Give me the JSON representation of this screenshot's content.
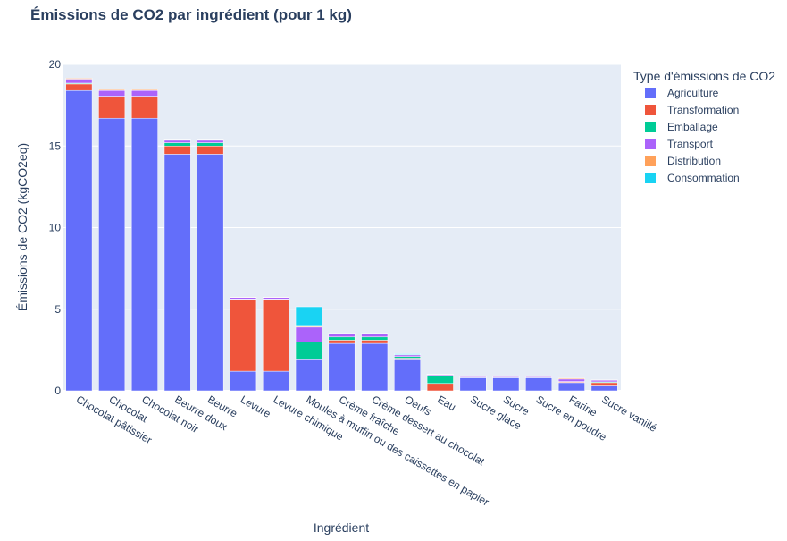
{
  "chart_data": {
    "type": "bar",
    "stacked": true,
    "title": "Émissions de CO2 par ingrédient (pour 1 kg)",
    "xlabel": "Ingrédient",
    "ylabel": "Émissions de CO2 (kgCO2eq)",
    "ylim": [
      0,
      20
    ],
    "yticks": [
      0,
      5,
      10,
      15,
      20
    ],
    "grid": true,
    "legend_title": "Type d'émissions de CO2",
    "legend_position": "right",
    "categories": [
      "Chocolat pâtissier",
      "Chocolat",
      "Chocolat noir",
      "Beurre doux",
      "Beurre",
      "Levure",
      "Levure chimique",
      "Moules à muffin ou des caissettes en papier",
      "Crème fraîche",
      "Crème dessert au chocolat",
      "Oeufs",
      "Eau",
      "Sucre glace",
      "Sucre",
      "Sucre en poudre",
      "Farine",
      "Sucre vanillé"
    ],
    "series": [
      {
        "name": "Agriculture",
        "color": "#636efa",
        "values": [
          18.4,
          16.7,
          16.7,
          14.5,
          14.5,
          1.2,
          1.2,
          1.9,
          2.9,
          2.9,
          1.9,
          0.0,
          0.8,
          0.8,
          0.8,
          0.5,
          0.3
        ]
      },
      {
        "name": "Transformation",
        "color": "#ef553b",
        "values": [
          0.4,
          1.3,
          1.3,
          0.5,
          0.5,
          4.4,
          4.4,
          0.0,
          0.2,
          0.2,
          0.1,
          0.45,
          0.0,
          0.0,
          0.0,
          0.05,
          0.2
        ]
      },
      {
        "name": "Emballage",
        "color": "#00cc96",
        "values": [
          0.05,
          0.05,
          0.05,
          0.2,
          0.2,
          0.02,
          0.02,
          1.1,
          0.2,
          0.2,
          0.1,
          0.5,
          0.02,
          0.02,
          0.02,
          0.02,
          0.05
        ]
      },
      {
        "name": "Transport",
        "color": "#ab63fa",
        "values": [
          0.25,
          0.35,
          0.35,
          0.15,
          0.15,
          0.1,
          0.1,
          0.9,
          0.2,
          0.2,
          0.1,
          0.05,
          0.05,
          0.05,
          0.05,
          0.15,
          0.1
        ]
      },
      {
        "name": "Distribution",
        "color": "#ffa15a",
        "values": [
          0.05,
          0.05,
          0.05,
          0.02,
          0.02,
          0.02,
          0.02,
          0.05,
          0.02,
          0.02,
          0.02,
          0.02,
          0.05,
          0.05,
          0.05,
          0.05,
          0.02
        ]
      },
      {
        "name": "Consommation",
        "color": "#19d3f3",
        "values": [
          0.0,
          0.0,
          0.0,
          0.0,
          0.0,
          0.0,
          0.0,
          1.2,
          0.0,
          0.0,
          0.05,
          0.0,
          0.0,
          0.0,
          0.0,
          0.0,
          0.0
        ]
      }
    ]
  }
}
